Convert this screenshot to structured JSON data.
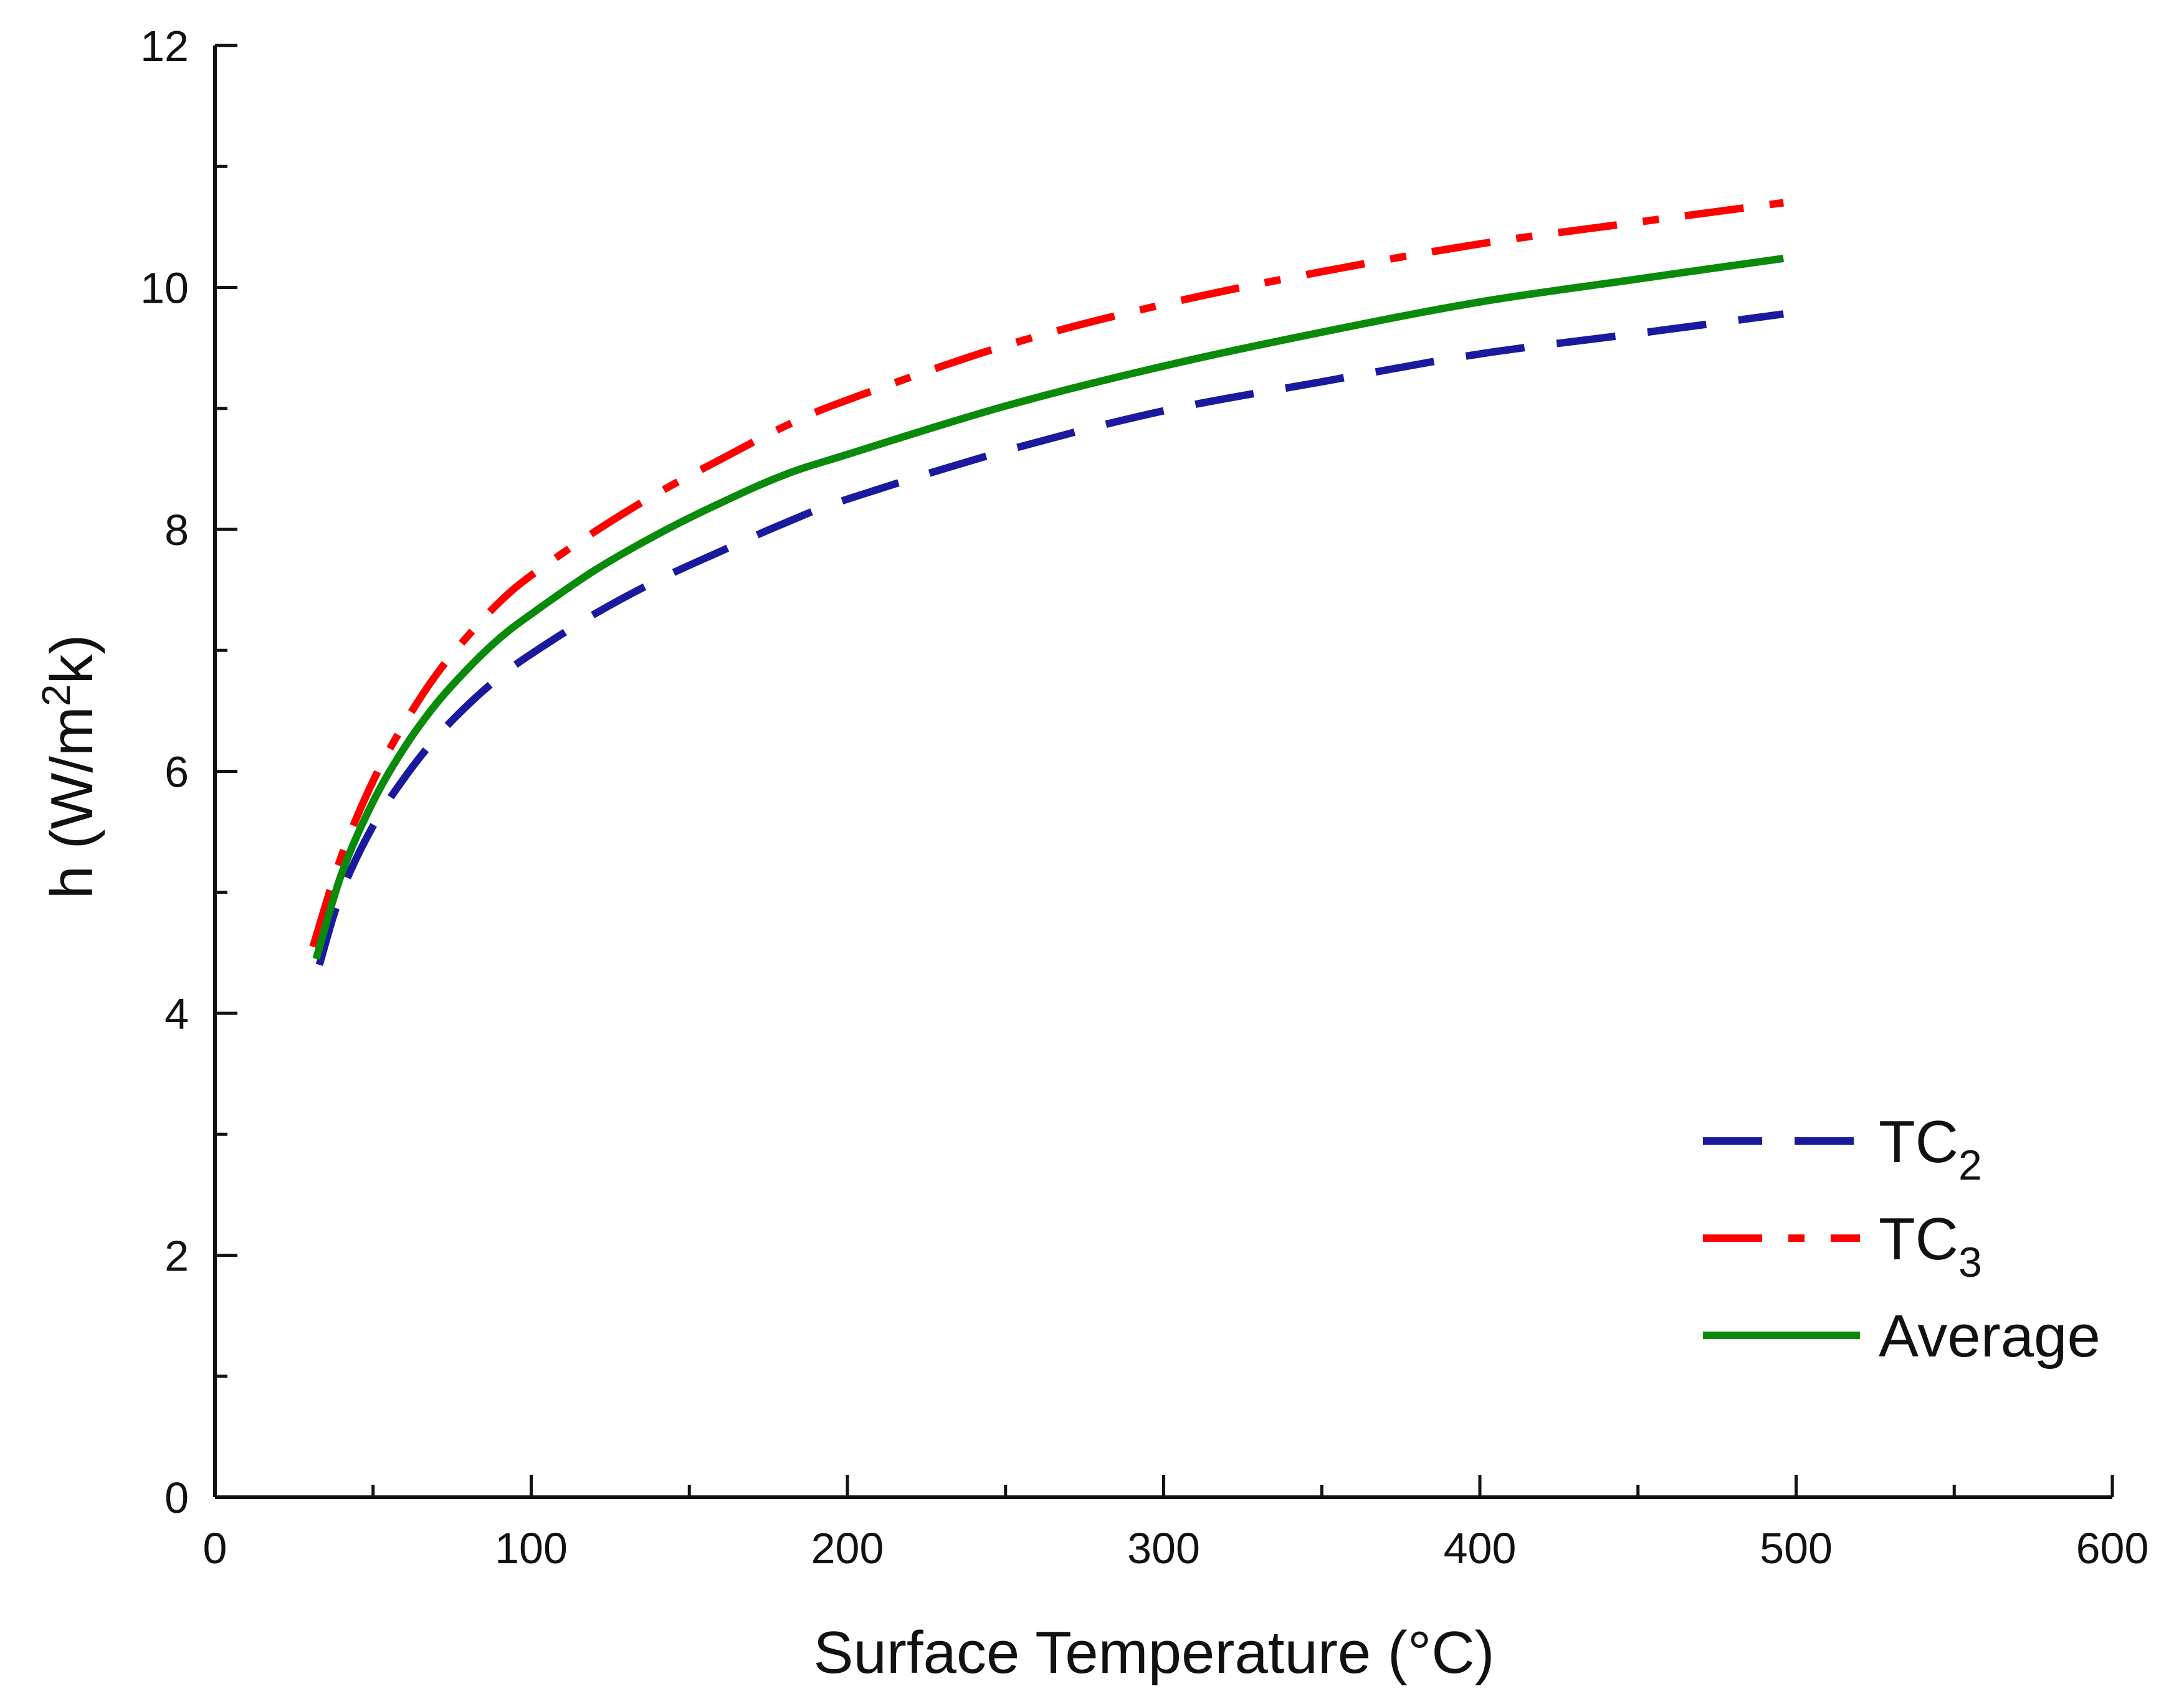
{
  "chart_data": {
    "type": "line",
    "title": "",
    "xlabel": "Surface Temperature (°C)",
    "ylabel": {
      "pre": "h (W/m",
      "sup": "2",
      "post": "k)"
    },
    "xlim": [
      0,
      600
    ],
    "ylim": [
      0,
      12
    ],
    "xticks": [
      0,
      100,
      200,
      300,
      400,
      500,
      600
    ],
    "yticks": [
      0,
      2,
      4,
      6,
      8,
      10,
      12
    ],
    "x_minor_step": 50,
    "y_minor_step": 1,
    "grid": false,
    "legend_position": "bottom-right",
    "series": [
      {
        "name": "TC",
        "subscript": "2",
        "color": "#1a1a9e",
        "style": "dashed",
        "x": [
          33,
          40,
          50,
          60,
          70,
          80,
          90,
          100,
          120,
          140,
          160,
          180,
          200,
          250,
          300,
          350,
          400,
          450,
          496
        ],
        "y": [
          4.4,
          5.0,
          5.55,
          5.95,
          6.28,
          6.55,
          6.78,
          6.97,
          7.3,
          7.58,
          7.82,
          8.05,
          8.25,
          8.65,
          8.98,
          9.22,
          9.45,
          9.62,
          9.78
        ]
      },
      {
        "name": "TC",
        "subscript": "3",
        "color": "#ff0000",
        "style": "dashdot",
        "x": [
          31,
          40,
          50,
          60,
          70,
          80,
          90,
          100,
          120,
          140,
          160,
          180,
          200,
          250,
          300,
          350,
          400,
          450,
          496
        ],
        "y": [
          4.55,
          5.3,
          5.92,
          6.4,
          6.8,
          7.12,
          7.4,
          7.62,
          7.98,
          8.3,
          8.58,
          8.85,
          9.07,
          9.52,
          9.86,
          10.13,
          10.36,
          10.54,
          10.7
        ]
      },
      {
        "name": "Average",
        "subscript": "",
        "color": "#0a8a0a",
        "style": "solid",
        "x": [
          32,
          40,
          50,
          60,
          70,
          80,
          90,
          100,
          120,
          140,
          160,
          180,
          200,
          250,
          300,
          350,
          400,
          450,
          496
        ],
        "y": [
          4.45,
          5.15,
          5.75,
          6.2,
          6.56,
          6.85,
          7.1,
          7.3,
          7.66,
          7.96,
          8.22,
          8.45,
          8.62,
          9.02,
          9.35,
          9.63,
          9.88,
          10.07,
          10.24
        ]
      }
    ]
  }
}
